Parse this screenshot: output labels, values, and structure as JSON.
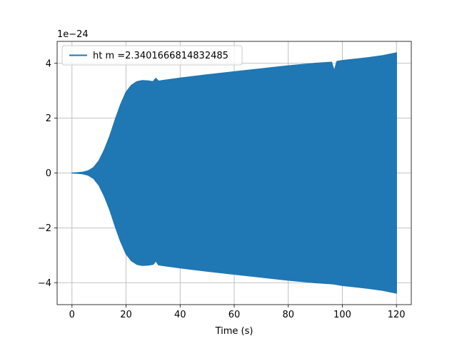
{
  "chart_data": {
    "type": "area",
    "title": "",
    "xlabel": "Time (s)",
    "ylabel": "",
    "y_scale_label": "1e−24",
    "x_ticks": [
      0,
      20,
      40,
      60,
      80,
      100,
      120
    ],
    "x_tick_labels": [
      "0",
      "20",
      "40",
      "60",
      "80",
      "100",
      "120"
    ],
    "y_ticks": [
      -4,
      -2,
      0,
      2,
      4
    ],
    "y_tick_labels": [
      "−4",
      "−2",
      "0",
      "2",
      "4"
    ],
    "xlim": [
      -5.5,
      125.5
    ],
    "ylim": [
      -4.8,
      4.8
    ],
    "grid": true,
    "legend_position": "top-left",
    "series": [
      {
        "name": "ht m =2.3401666814832485",
        "color": "#1f77b4",
        "x": [
          0,
          2,
          4,
          6,
          8,
          10,
          12,
          14,
          16,
          18,
          20,
          22,
          24,
          26,
          28,
          30,
          31,
          32,
          34,
          40,
          50,
          60,
          70,
          80,
          90,
          96,
          97,
          98,
          100,
          110,
          115,
          120
        ],
        "upper": [
          0,
          0.01,
          0.03,
          0.08,
          0.2,
          0.45,
          0.85,
          1.35,
          1.95,
          2.5,
          2.95,
          3.2,
          3.33,
          3.37,
          3.36,
          3.33,
          3.45,
          3.35,
          3.38,
          3.46,
          3.58,
          3.69,
          3.8,
          3.91,
          4.0,
          4.04,
          3.72,
          4.07,
          4.1,
          4.21,
          4.28,
          4.38
        ],
        "lower": [
          0,
          -0.01,
          -0.03,
          -0.08,
          -0.2,
          -0.45,
          -0.85,
          -1.35,
          -1.95,
          -2.5,
          -2.95,
          -3.2,
          -3.33,
          -3.37,
          -3.36,
          -3.33,
          -3.2,
          -3.35,
          -3.38,
          -3.46,
          -3.58,
          -3.69,
          -3.8,
          -3.91,
          -4.0,
          -4.04,
          -4.05,
          -4.07,
          -4.1,
          -4.21,
          -4.28,
          -4.38
        ]
      }
    ]
  }
}
